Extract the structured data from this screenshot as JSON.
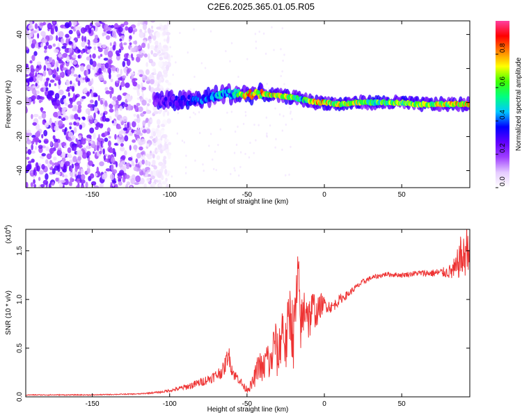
{
  "title": "C2E6.2025.365.01.05.R05",
  "chart_data": [
    {
      "type": "heatmap",
      "xlabel": "Height of straight line (km)",
      "ylabel": "Frequency (Hz)",
      "xlim": [
        -193,
        94
      ],
      "ylim": [
        -50,
        48
      ],
      "xticks": [
        -150,
        -100,
        -50,
        0,
        50
      ],
      "xtick_labels": [
        "-150",
        "-100",
        "-50",
        "0",
        "50"
      ],
      "yticks": [
        -40,
        -20,
        0,
        20,
        40
      ],
      "ytick_labels": [
        "-40",
        "-20",
        "0",
        "20",
        "40"
      ],
      "colorbar": {
        "label": "Normalized spectral amplitude",
        "range": [
          0,
          1
        ],
        "ticks": [
          0.0,
          0.2,
          0.4,
          0.6,
          0.8
        ],
        "tick_labels": [
          "0.0",
          "0.2",
          "0.4",
          "0.6",
          "0.8"
        ],
        "colormap": [
          "#ffffff",
          "#e6ccff",
          "#a040ff",
          "#6000ff",
          "#0000ff",
          "#00c8ff",
          "#00ff80",
          "#40ff00",
          "#ffff00",
          "#ff8000",
          "#ff0000",
          "#ff40a0"
        ]
      },
      "ridge": {
        "x": [
          -110,
          -100,
          -90,
          -80,
          -70,
          -65,
          -60,
          -55,
          -50,
          -45,
          -40,
          -30,
          -20,
          -15,
          -10,
          -5,
          0,
          10,
          20,
          30,
          40,
          50,
          60,
          70,
          80,
          90,
          94
        ],
        "y": [
          1,
          1,
          1,
          2,
          4,
          5,
          5,
          5,
          5,
          5,
          5,
          4,
          3,
          2,
          1,
          0,
          0,
          -1,
          0,
          0,
          0,
          0,
          -1,
          -1,
          -1,
          -1,
          -1
        ],
        "peak_amplitude": [
          0.3,
          0.35,
          0.4,
          0.45,
          0.5,
          0.55,
          0.5,
          0.7,
          0.9,
          0.95,
          0.9,
          0.85,
          0.75,
          0.6,
          0.75,
          0.9,
          0.9,
          0.85,
          0.8,
          0.7,
          0.75,
          0.75,
          0.8,
          0.8,
          0.85,
          0.9,
          0.9
        ]
      },
      "noise_region": {
        "x_range": [
          -193,
          -100
        ],
        "y_range": [
          -50,
          48
        ]
      }
    },
    {
      "type": "line",
      "xlabel": "Height of straight line (km)",
      "ylabel": "SNR (10 * v/v)",
      "y_multiplier": "(x10",
      "y_multiplier_exp": "4",
      "xlim": [
        -193,
        94
      ],
      "ylim": [
        0,
        1.72
      ],
      "xticks": [
        -150,
        -100,
        -50,
        0,
        50
      ],
      "xtick_labels": [
        "-150",
        "-100",
        "-50",
        "0",
        "50"
      ],
      "yticks": [
        0,
        0.5,
        1.0,
        1.5
      ],
      "ytick_labels": [
        "0.0",
        "0.5",
        "1.0",
        "1.5"
      ],
      "color": "#ee3333",
      "series": [
        {
          "x": [
            -193,
            -150,
            -120,
            -105,
            -95,
            -85,
            -75,
            -70,
            -65,
            -62,
            -60,
            -58,
            -55,
            -52,
            -50,
            -47,
            -45,
            -42,
            -40,
            -37,
            -35,
            -32,
            -30,
            -27,
            -25,
            -22,
            -20,
            -17,
            -15,
            -12,
            -10,
            -7,
            -5,
            -2,
            0,
            5,
            10,
            15,
            20,
            25,
            30,
            35,
            40,
            50,
            60,
            70,
            80,
            85,
            88,
            90,
            92,
            94
          ],
          "y": [
            0.02,
            0.02,
            0.03,
            0.05,
            0.08,
            0.12,
            0.18,
            0.22,
            0.28,
            0.45,
            0.3,
            0.22,
            0.18,
            0.1,
            0.08,
            0.12,
            0.2,
            0.35,
            0.25,
            0.42,
            0.3,
            0.6,
            0.38,
            0.75,
            0.5,
            0.9,
            0.6,
            1.2,
            0.7,
            1.0,
            0.8,
            0.92,
            0.85,
            0.95,
            0.95,
            0.92,
            1.0,
            1.05,
            1.12,
            1.18,
            1.22,
            1.24,
            1.26,
            1.25,
            1.27,
            1.27,
            1.28,
            1.3,
            1.45,
            1.4,
            1.55,
            1.5
          ],
          "noise_amplitude": [
            0.005,
            0.005,
            0.005,
            0.01,
            0.02,
            0.04,
            0.05,
            0.06,
            0.08,
            0.1,
            0.08,
            0.06,
            0.05,
            0.04,
            0.04,
            0.06,
            0.1,
            0.15,
            0.15,
            0.2,
            0.2,
            0.25,
            0.25,
            0.3,
            0.3,
            0.35,
            0.35,
            0.35,
            0.3,
            0.3,
            0.25,
            0.2,
            0.15,
            0.12,
            0.08,
            0.06,
            0.05,
            0.04,
            0.03,
            0.03,
            0.025,
            0.025,
            0.025,
            0.025,
            0.03,
            0.04,
            0.06,
            0.15,
            0.2,
            0.25,
            0.25,
            0.2
          ]
        }
      ]
    }
  ]
}
